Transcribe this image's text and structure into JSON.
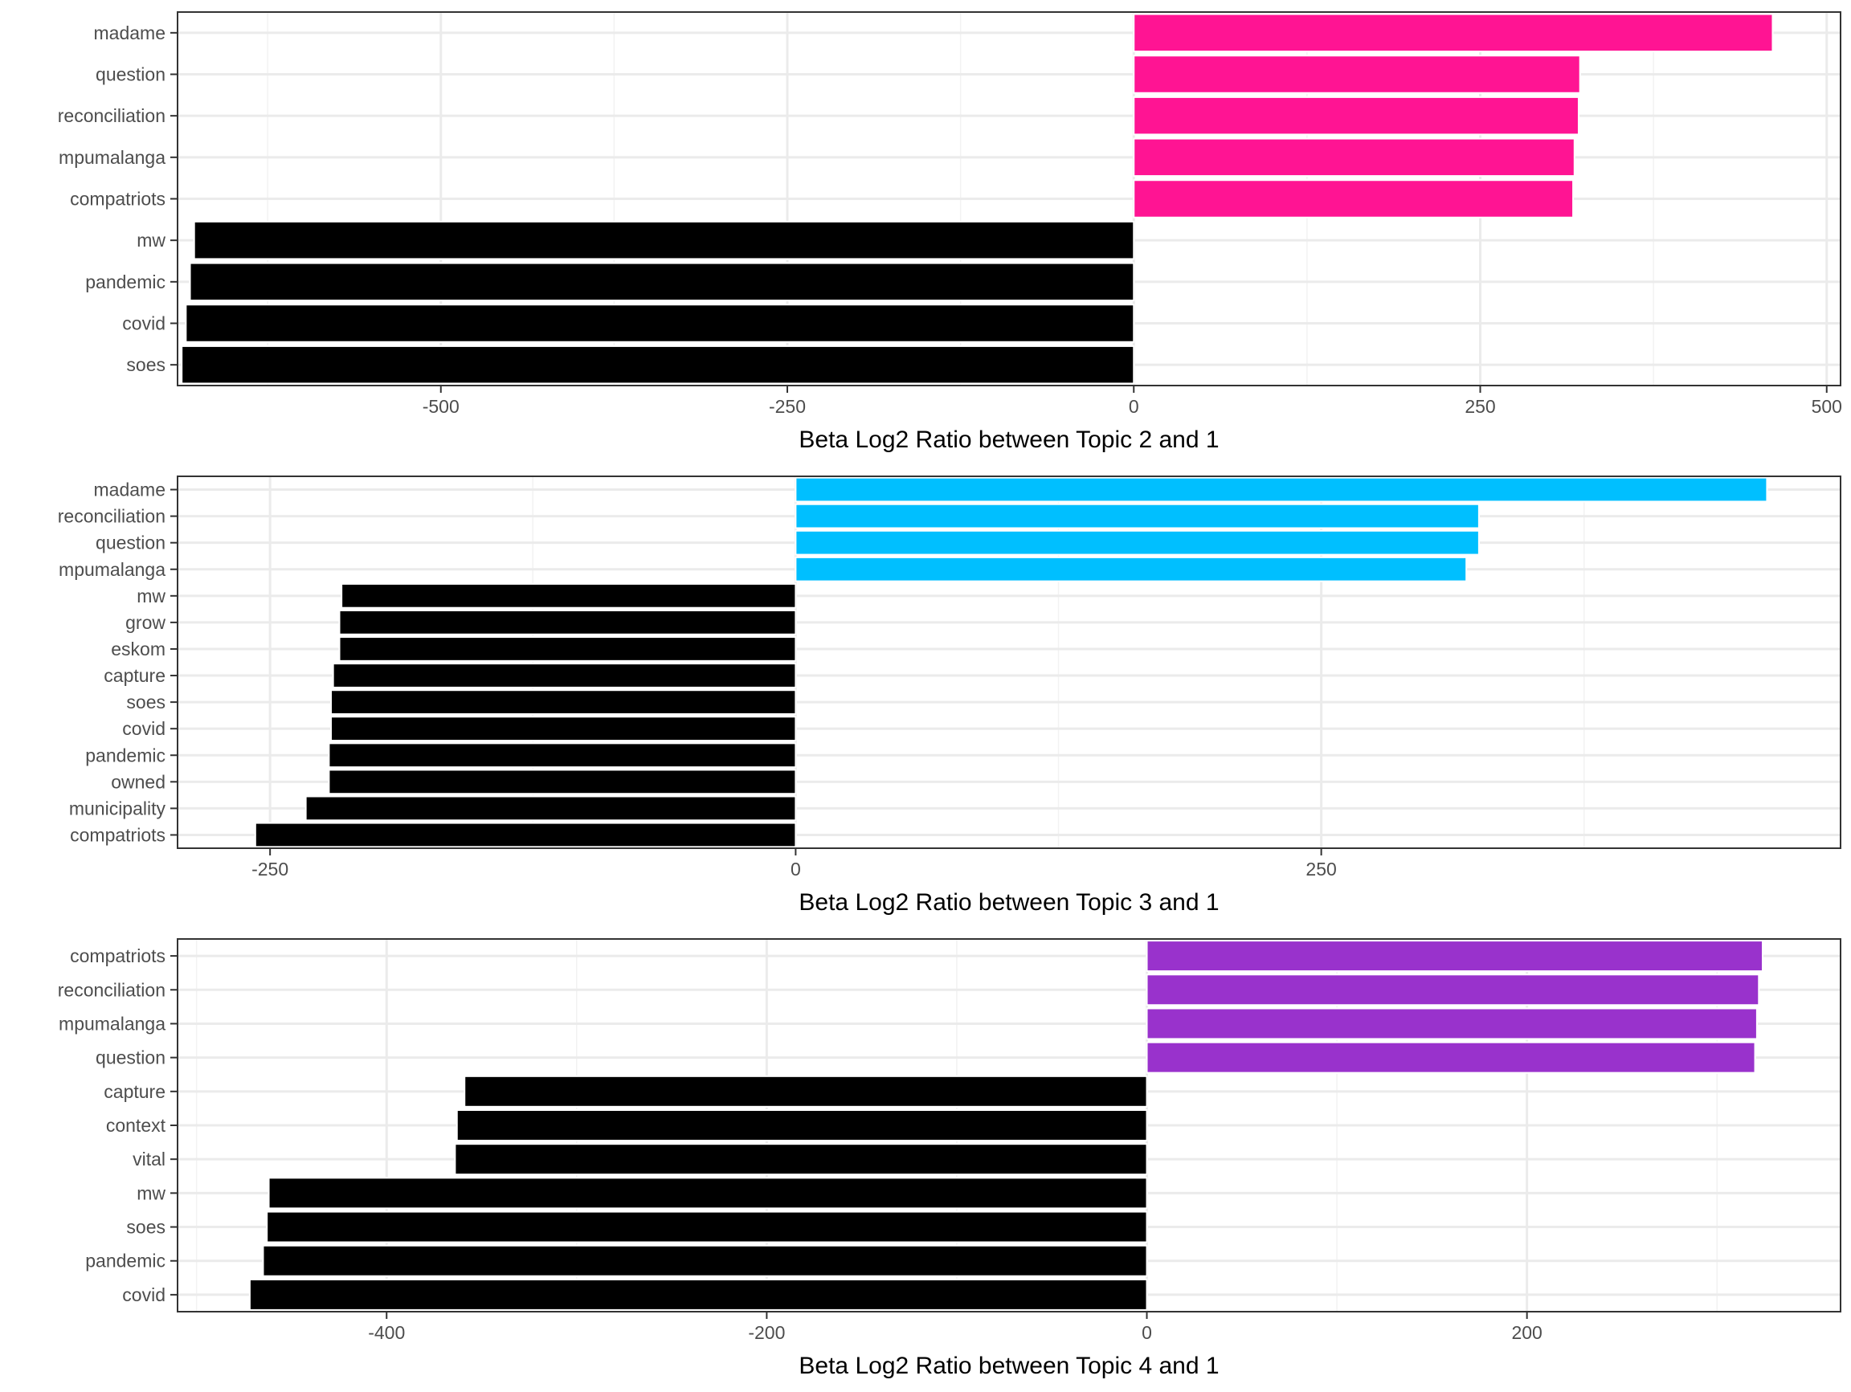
{
  "chart_data": [
    {
      "type": "bar",
      "orientation": "horizontal",
      "xlabel": "Beta Log2 Ratio between Topic 2 and 1",
      "ylabel": "",
      "xlim": [
        -690,
        510
      ],
      "xticks": [
        -500,
        -250,
        0,
        250,
        500
      ],
      "xtick_labels": [
        "-500",
        "-250",
        "0",
        "250",
        "500"
      ],
      "grid": true,
      "positive_color": "#FF1493",
      "negative_color": "#000000",
      "categories": [
        "madame",
        "question",
        "reconciliation",
        "mpumalanga",
        "compatriots",
        "mw",
        "pandemic",
        "covid",
        "soes"
      ],
      "values": [
        461,
        322,
        321,
        318,
        317,
        -678,
        -681,
        -684,
        -687
      ]
    },
    {
      "type": "bar",
      "orientation": "horizontal",
      "xlabel": "Beta Log2 Ratio between Topic 3 and 1",
      "ylabel": "",
      "xlim": [
        -294,
        497
      ],
      "xticks": [
        -250,
        0,
        250
      ],
      "xtick_labels": [
        "-250",
        "0",
        "250"
      ],
      "grid": true,
      "positive_color": "#00BFFF",
      "negative_color": "#000000",
      "categories": [
        "madame",
        "reconciliation",
        "question",
        "mpumalanga",
        "mw",
        "grow",
        "eskom",
        "capture",
        "soes",
        "covid",
        "pandemic",
        "owned",
        "municipality",
        "compatriots"
      ],
      "values": [
        462,
        325,
        325,
        319,
        -216,
        -217,
        -217,
        -220,
        -221,
        -221,
        -222,
        -222,
        -233,
        -257
      ]
    },
    {
      "type": "bar",
      "orientation": "horizontal",
      "xlabel": "Beta Log2 Ratio between Topic 4 and 1",
      "ylabel": "",
      "xlim": [
        -510,
        365
      ],
      "xticks": [
        -400,
        -200,
        0,
        200
      ],
      "xtick_labels": [
        "-400",
        "-200",
        "0",
        "200"
      ],
      "grid": true,
      "positive_color": "#9932CC",
      "negative_color": "#000000",
      "categories": [
        "compatriots",
        "reconciliation",
        "mpumalanga",
        "question",
        "capture",
        "context",
        "vital",
        "mw",
        "soes",
        "pandemic",
        "covid"
      ],
      "values": [
        324,
        322,
        321,
        320,
        -359,
        -363,
        -364,
        -462,
        -463,
        -465,
        -472
      ]
    }
  ]
}
